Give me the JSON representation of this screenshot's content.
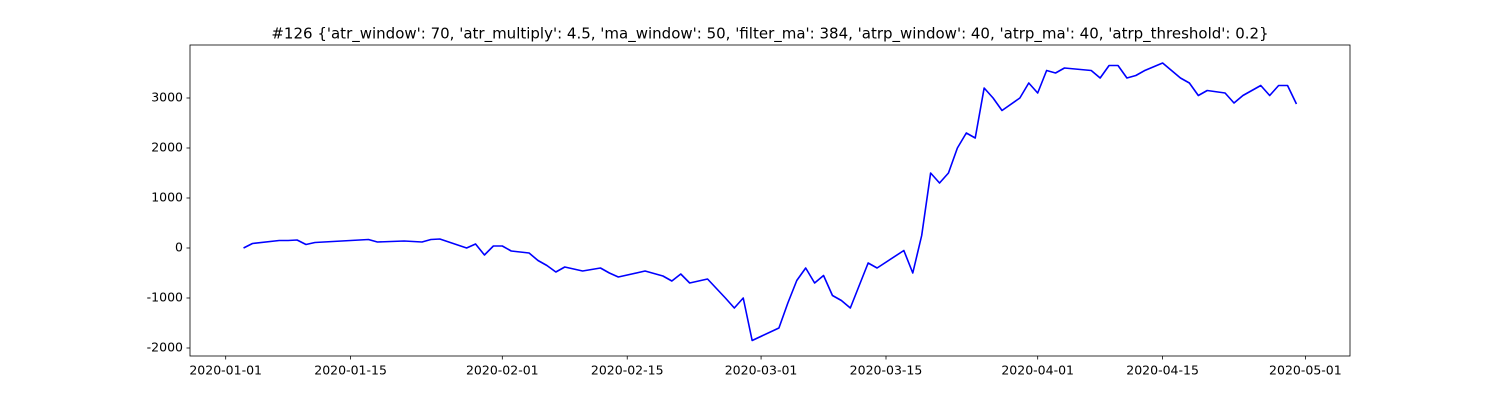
{
  "chart_data": {
    "type": "line",
    "title": "#126 {'atr_window': 70, 'atr_multiply': 4.5, 'ma_window': 50, 'filter_ma': 384, 'atrp_window': 40, 'atrp_ma': 40, 'atrp_threshold': 0.2}",
    "x": [
      "2020-01-03",
      "2020-01-04",
      "2020-01-07",
      "2020-01-08",
      "2020-01-09",
      "2020-01-10",
      "2020-01-11",
      "2020-01-14",
      "2020-01-17",
      "2020-01-18",
      "2020-01-21",
      "2020-01-23",
      "2020-01-24",
      "2020-01-25",
      "2020-01-28",
      "2020-01-29",
      "2020-01-30",
      "2020-01-31",
      "2020-02-01",
      "2020-02-02",
      "2020-02-04",
      "2020-02-05",
      "2020-02-06",
      "2020-02-07",
      "2020-02-08",
      "2020-02-10",
      "2020-02-12",
      "2020-02-13",
      "2020-02-14",
      "2020-02-17",
      "2020-02-19",
      "2020-02-20",
      "2020-02-21",
      "2020-02-22",
      "2020-02-24",
      "2020-02-26",
      "2020-02-27",
      "2020-02-28",
      "2020-02-29",
      "2020-03-03",
      "2020-03-04",
      "2020-03-05",
      "2020-03-06",
      "2020-03-07",
      "2020-03-08",
      "2020-03-09",
      "2020-03-10",
      "2020-03-11",
      "2020-03-12",
      "2020-03-13",
      "2020-03-14",
      "2020-03-17",
      "2020-03-18",
      "2020-03-19",
      "2020-03-20",
      "2020-03-21",
      "2020-03-22",
      "2020-03-23",
      "2020-03-24",
      "2020-03-25",
      "2020-03-26",
      "2020-03-27",
      "2020-03-28",
      "2020-03-30",
      "2020-03-31",
      "2020-04-01",
      "2020-04-02",
      "2020-04-03",
      "2020-04-04",
      "2020-04-07",
      "2020-04-08",
      "2020-04-09",
      "2020-04-10",
      "2020-04-11",
      "2020-04-12",
      "2020-04-13",
      "2020-04-15",
      "2020-04-16",
      "2020-04-17",
      "2020-04-18",
      "2020-04-19",
      "2020-04-20",
      "2020-04-22",
      "2020-04-23",
      "2020-04-24",
      "2020-04-25",
      "2020-04-26",
      "2020-04-27",
      "2020-04-28",
      "2020-04-29",
      "2020-04-30"
    ],
    "values": [
      0,
      90,
      150,
      150,
      160,
      70,
      110,
      140,
      170,
      120,
      140,
      120,
      170,
      180,
      0,
      80,
      -140,
      40,
      40,
      -60,
      -100,
      -250,
      -350,
      -480,
      -380,
      -460,
      -400,
      -500,
      -580,
      -460,
      -560,
      -660,
      -520,
      -700,
      -620,
      -1000,
      -1200,
      -1000,
      -1850,
      -1600,
      -1100,
      -650,
      -400,
      -700,
      -550,
      -950,
      -1050,
      -1200,
      -750,
      -300,
      -400,
      -50,
      -500,
      250,
      1500,
      1300,
      1500,
      2000,
      2300,
      2200,
      3200,
      3000,
      2750,
      3000,
      3300,
      3100,
      3550,
      3500,
      3600,
      3550,
      3400,
      3650,
      3650,
      3400,
      3450,
      3550,
      3700,
      3550,
      3400,
      3300,
      3050,
      3150,
      3100,
      2900,
      3050,
      3150,
      3250,
      3050,
      3250,
      3250,
      2880
    ],
    "color": "#0000ff",
    "xlim": [
      "2019-12-28",
      "2020-05-06"
    ],
    "xticks": [
      "2020-01-01",
      "2020-01-15",
      "2020-02-01",
      "2020-02-15",
      "2020-03-01",
      "2020-03-15",
      "2020-04-01",
      "2020-04-15",
      "2020-05-01"
    ],
    "ylim": [
      -2160,
      4060
    ],
    "yticks": [
      -2000,
      -1000,
      0,
      1000,
      2000,
      3000
    ],
    "grid": false
  }
}
